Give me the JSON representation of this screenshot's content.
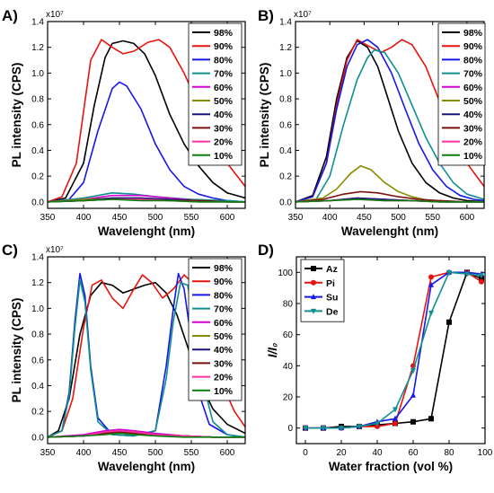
{
  "colors": {
    "98%": "#000000",
    "90%": "#e8130f",
    "80%": "#1717e6",
    "70%": "#0f8f8f",
    "60%": "#d400d4",
    "50%": "#8b8b00",
    "40%": "#16167a",
    "30%": "#7a1010",
    "20%": "#ff2fa0",
    "10%": "#0b7f0b",
    "Az": "#000000",
    "Pi": "#e8130f",
    "Su": "#1717e6",
    "De": "#0f8f8f"
  },
  "chart_data": [
    {
      "panel_label": "A)",
      "type": "line",
      "exponent_label": "x10⁷",
      "xlabel": "Wavelenght (nm)",
      "ylabel": "PL intensity (CPS)",
      "xlim": [
        350,
        625
      ],
      "ylim": [
        -0.05,
        1.4
      ],
      "xticks": [
        "350",
        "400",
        "450",
        "500",
        "550",
        "600"
      ],
      "yticks": [
        "0.0",
        "0.2",
        "0.4",
        "0.6",
        "0.8",
        "1.0",
        "1.2",
        "1.4"
      ],
      "legend_position": "top-right",
      "series": [
        {
          "name": "98%",
          "x": [
            350,
            375,
            400,
            415,
            430,
            440,
            455,
            470,
            485,
            500,
            520,
            540,
            560,
            580,
            600,
            625
          ],
          "y": [
            0.0,
            0.03,
            0.3,
            0.75,
            1.12,
            1.23,
            1.25,
            1.23,
            1.15,
            0.98,
            0.68,
            0.45,
            0.28,
            0.15,
            0.07,
            0.03
          ]
        },
        {
          "name": "90%",
          "x": [
            350,
            370,
            390,
            400,
            410,
            425,
            440,
            455,
            470,
            490,
            505,
            520,
            540,
            560,
            580,
            600,
            625
          ],
          "y": [
            0.0,
            0.04,
            0.3,
            0.7,
            1.1,
            1.26,
            1.2,
            1.15,
            1.17,
            1.24,
            1.26,
            1.2,
            1.0,
            0.75,
            0.5,
            0.3,
            0.12
          ]
        },
        {
          "name": "80%",
          "x": [
            350,
            380,
            400,
            420,
            440,
            450,
            460,
            480,
            500,
            520,
            540,
            560,
            580,
            600,
            625
          ],
          "y": [
            0.0,
            0.02,
            0.15,
            0.55,
            0.88,
            0.93,
            0.9,
            0.72,
            0.45,
            0.25,
            0.12,
            0.06,
            0.03,
            0.01,
            0.0
          ]
        },
        {
          "name": "70%",
          "x": [
            350,
            400,
            440,
            470,
            500,
            550,
            600,
            625
          ],
          "y": [
            0.0,
            0.03,
            0.07,
            0.06,
            0.04,
            0.02,
            0.01,
            0.0
          ]
        },
        {
          "name": "60%",
          "x": [
            350,
            400,
            440,
            480,
            520,
            560,
            600,
            625
          ],
          "y": [
            0.0,
            0.02,
            0.05,
            0.05,
            0.03,
            0.01,
            0.0,
            0.0
          ]
        },
        {
          "name": "50%",
          "x": [
            350,
            400,
            440,
            480,
            520,
            560,
            600,
            625
          ],
          "y": [
            0.0,
            0.02,
            0.03,
            0.03,
            0.02,
            0.01,
            0.0,
            0.0
          ]
        },
        {
          "name": "40%",
          "x": [
            350,
            400,
            440,
            480,
            520,
            560,
            600,
            625
          ],
          "y": [
            0.0,
            0.01,
            0.03,
            0.03,
            0.02,
            0.01,
            0.0,
            0.0
          ]
        },
        {
          "name": "30%",
          "x": [
            350,
            400,
            440,
            480,
            520,
            560,
            600,
            625
          ],
          "y": [
            0.0,
            0.01,
            0.02,
            0.02,
            0.01,
            0.01,
            0.0,
            0.0
          ]
        },
        {
          "name": "20%",
          "x": [
            350,
            400,
            440,
            480,
            520,
            560,
            600,
            625
          ],
          "y": [
            0.0,
            0.01,
            0.02,
            0.02,
            0.01,
            0.0,
            0.0,
            0.0
          ]
        },
        {
          "name": "10%",
          "x": [
            350,
            400,
            440,
            480,
            520,
            560,
            600,
            625
          ],
          "y": [
            0.0,
            0.01,
            0.02,
            0.01,
            0.01,
            0.0,
            0.0,
            0.0
          ]
        }
      ]
    },
    {
      "panel_label": "B)",
      "type": "line",
      "exponent_label": "x10⁷",
      "xlabel": "Wavelenght (nm)",
      "ylabel": "PL intensity (CPS)",
      "xlim": [
        350,
        625
      ],
      "ylim": [
        -0.05,
        1.4
      ],
      "xticks": [
        "350",
        "400",
        "450",
        "500",
        "550",
        "600"
      ],
      "yticks": [
        "0.0",
        "0.2",
        "0.4",
        "0.6",
        "0.8",
        "1.0",
        "1.2",
        "1.4"
      ],
      "legend_position": "top-right",
      "series": [
        {
          "name": "98%",
          "x": [
            350,
            375,
            395,
            410,
            425,
            440,
            455,
            470,
            485,
            500,
            520,
            540,
            560,
            580,
            600,
            625
          ],
          "y": [
            0.0,
            0.05,
            0.35,
            0.8,
            1.12,
            1.25,
            1.2,
            1.05,
            0.8,
            0.55,
            0.3,
            0.15,
            0.07,
            0.03,
            0.01,
            0.0
          ]
        },
        {
          "name": "90%",
          "x": [
            350,
            375,
            395,
            410,
            425,
            440,
            460,
            475,
            490,
            505,
            520,
            540,
            560,
            580,
            600,
            625
          ],
          "y": [
            0.0,
            0.04,
            0.3,
            0.75,
            1.1,
            1.26,
            1.2,
            1.16,
            1.2,
            1.26,
            1.22,
            1.05,
            0.78,
            0.52,
            0.3,
            0.12
          ]
        },
        {
          "name": "80%",
          "x": [
            350,
            375,
            395,
            410,
            425,
            440,
            455,
            470,
            490,
            510,
            530,
            550,
            570,
            590,
            610,
            625
          ],
          "y": [
            0.0,
            0.04,
            0.3,
            0.72,
            1.05,
            1.22,
            1.26,
            1.2,
            1.0,
            0.72,
            0.45,
            0.25,
            0.12,
            0.05,
            0.02,
            0.01
          ]
        },
        {
          "name": "70%",
          "x": [
            350,
            380,
            400,
            420,
            440,
            455,
            465,
            480,
            500,
            520,
            540,
            560,
            580,
            600,
            625
          ],
          "y": [
            0.0,
            0.02,
            0.2,
            0.6,
            0.95,
            1.12,
            1.18,
            1.16,
            1.0,
            0.75,
            0.5,
            0.3,
            0.15,
            0.06,
            0.02
          ]
        },
        {
          "name": "60%",
          "x": [
            350,
            400,
            440,
            480,
            520,
            560,
            600,
            625
          ],
          "y": [
            0.0,
            0.01,
            0.03,
            0.02,
            0.01,
            0.0,
            0.0,
            0.0
          ]
        },
        {
          "name": "50%",
          "x": [
            350,
            390,
            410,
            430,
            445,
            460,
            480,
            500,
            520,
            545,
            570,
            600,
            625
          ],
          "y": [
            0.0,
            0.03,
            0.1,
            0.22,
            0.28,
            0.25,
            0.15,
            0.08,
            0.04,
            0.01,
            0.0,
            0.0,
            0.0
          ]
        },
        {
          "name": "40%",
          "x": [
            350,
            400,
            440,
            480,
            520,
            560,
            600,
            625
          ],
          "y": [
            0.0,
            0.01,
            0.03,
            0.02,
            0.01,
            0.0,
            0.0,
            0.0
          ]
        },
        {
          "name": "30%",
          "x": [
            350,
            390,
            420,
            445,
            470,
            500,
            530,
            560,
            600,
            625
          ],
          "y": [
            0.0,
            0.02,
            0.06,
            0.08,
            0.07,
            0.04,
            0.02,
            0.01,
            0.0,
            0.0
          ]
        },
        {
          "name": "20%",
          "x": [
            350,
            400,
            440,
            480,
            520,
            560,
            600,
            625
          ],
          "y": [
            0.0,
            0.01,
            0.02,
            0.01,
            0.01,
            0.0,
            0.0,
            0.0
          ]
        },
        {
          "name": "10%",
          "x": [
            350,
            400,
            440,
            480,
            520,
            560,
            600,
            625
          ],
          "y": [
            0.0,
            0.01,
            0.02,
            0.01,
            0.01,
            0.0,
            0.0,
            0.0
          ]
        }
      ]
    },
    {
      "panel_label": "C)",
      "type": "line",
      "exponent_label": "x10⁷",
      "xlabel": "Wavelenght (nm)",
      "ylabel": "PL intensity (CPS)",
      "xlim": [
        350,
        625
      ],
      "ylim": [
        -0.05,
        1.4
      ],
      "xticks": [
        "350",
        "400",
        "450",
        "500",
        "550",
        "600"
      ],
      "yticks": [
        "0.0",
        "0.2",
        "0.4",
        "0.6",
        "0.8",
        "1.0",
        "1.2",
        "1.4"
      ],
      "legend_position": "top-right",
      "series": [
        {
          "name": "98%",
          "x": [
            350,
            365,
            380,
            395,
            410,
            425,
            440,
            455,
            470,
            485,
            500,
            515,
            530,
            545,
            560,
            580,
            600,
            625
          ],
          "y": [
            0.0,
            0.05,
            0.3,
            0.8,
            1.1,
            1.2,
            1.18,
            1.12,
            1.15,
            1.18,
            1.2,
            1.12,
            0.95,
            0.7,
            0.45,
            0.22,
            0.1,
            0.03
          ]
        },
        {
          "name": "90%",
          "x": [
            350,
            370,
            385,
            400,
            412,
            425,
            440,
            455,
            470,
            482,
            495,
            510,
            525,
            540,
            555,
            570,
            590,
            610,
            625
          ],
          "y": [
            0.0,
            0.05,
            0.3,
            0.85,
            1.18,
            1.22,
            1.08,
            1.0,
            1.15,
            1.26,
            1.2,
            1.08,
            1.15,
            1.26,
            1.18,
            0.85,
            0.45,
            0.2,
            0.08
          ]
        },
        {
          "name": "80%",
          "x": [
            350,
            370,
            380,
            388,
            395,
            402,
            410,
            420,
            440,
            470,
            500,
            515,
            525,
            532,
            540,
            550,
            560,
            575,
            600,
            625
          ],
          "y": [
            0.0,
            0.05,
            0.35,
            0.9,
            1.27,
            1.1,
            0.55,
            0.15,
            0.02,
            0.01,
            0.05,
            0.55,
            1.0,
            1.27,
            1.15,
            0.75,
            0.35,
            0.1,
            0.02,
            0.0
          ]
        },
        {
          "name": "70%",
          "x": [
            350,
            370,
            380,
            388,
            395,
            402,
            410,
            420,
            440,
            470,
            500,
            515,
            525,
            535,
            545,
            555,
            565,
            580,
            600,
            625
          ],
          "y": [
            0.0,
            0.05,
            0.32,
            0.85,
            1.22,
            1.05,
            0.52,
            0.12,
            0.02,
            0.01,
            0.05,
            0.45,
            0.9,
            1.2,
            1.18,
            0.85,
            0.45,
            0.12,
            0.02,
            0.0
          ]
        },
        {
          "name": "60%",
          "x": [
            350,
            400,
            430,
            450,
            470,
            500,
            540,
            580,
            625
          ],
          "y": [
            0.0,
            0.02,
            0.05,
            0.06,
            0.05,
            0.03,
            0.01,
            0.0,
            0.0
          ]
        },
        {
          "name": "50%",
          "x": [
            350,
            400,
            430,
            450,
            470,
            500,
            540,
            580,
            625
          ],
          "y": [
            0.0,
            0.01,
            0.04,
            0.05,
            0.04,
            0.02,
            0.01,
            0.0,
            0.0
          ]
        },
        {
          "name": "40%",
          "x": [
            350,
            400,
            430,
            450,
            470,
            500,
            540,
            580,
            625
          ],
          "y": [
            0.0,
            0.01,
            0.03,
            0.04,
            0.03,
            0.02,
            0.01,
            0.0,
            0.0
          ]
        },
        {
          "name": "30%",
          "x": [
            350,
            400,
            430,
            450,
            470,
            500,
            540,
            580,
            625
          ],
          "y": [
            0.0,
            0.01,
            0.03,
            0.04,
            0.03,
            0.02,
            0.01,
            0.0,
            0.0
          ]
        },
        {
          "name": "20%",
          "x": [
            350,
            400,
            430,
            450,
            470,
            500,
            540,
            580,
            625
          ],
          "y": [
            0.0,
            0.01,
            0.04,
            0.05,
            0.04,
            0.02,
            0.01,
            0.0,
            0.0
          ]
        },
        {
          "name": "10%",
          "x": [
            350,
            400,
            430,
            450,
            470,
            500,
            540,
            580,
            625
          ],
          "y": [
            0.0,
            0.01,
            0.02,
            0.03,
            0.02,
            0.01,
            0.0,
            0.0,
            0.0
          ]
        }
      ]
    },
    {
      "panel_label": "D)",
      "type": "line",
      "xlabel": "Water fraction (vol %)",
      "ylabel": "I/I₀",
      "xlim": [
        -5,
        100
      ],
      "ylim": [
        -10,
        110
      ],
      "xticks": [
        "0",
        "20",
        "40",
        "60",
        "80",
        "100"
      ],
      "yticks": [
        "0",
        "20",
        "40",
        "60",
        "80",
        "100"
      ],
      "legend_position": "top-left",
      "series": [
        {
          "name": "Az",
          "marker": "square",
          "x": [
            0,
            10,
            20,
            30,
            40,
            50,
            60,
            70,
            80,
            90,
            98
          ],
          "y": [
            0,
            0,
            1,
            1,
            2,
            3,
            4,
            6,
            68,
            100,
            96
          ]
        },
        {
          "name": "Pi",
          "marker": "circle",
          "x": [
            0,
            10,
            20,
            30,
            40,
            50,
            60,
            70,
            80,
            90,
            98
          ],
          "y": [
            0,
            0,
            0,
            1,
            1,
            3,
            40,
            97,
            100,
            100,
            94
          ]
        },
        {
          "name": "Su",
          "marker": "triangle-up",
          "x": [
            0,
            10,
            20,
            30,
            40,
            50,
            60,
            70,
            80,
            90,
            98
          ],
          "y": [
            0,
            0,
            0,
            1,
            4,
            6,
            21,
            92,
            100,
            100,
            99
          ]
        },
        {
          "name": "De",
          "marker": "triangle-down",
          "x": [
            0,
            10,
            20,
            30,
            40,
            50,
            60,
            70,
            80,
            90,
            98
          ],
          "y": [
            0,
            0,
            0,
            1,
            3,
            12,
            37,
            74,
            100,
            99,
            98
          ]
        }
      ]
    }
  ]
}
